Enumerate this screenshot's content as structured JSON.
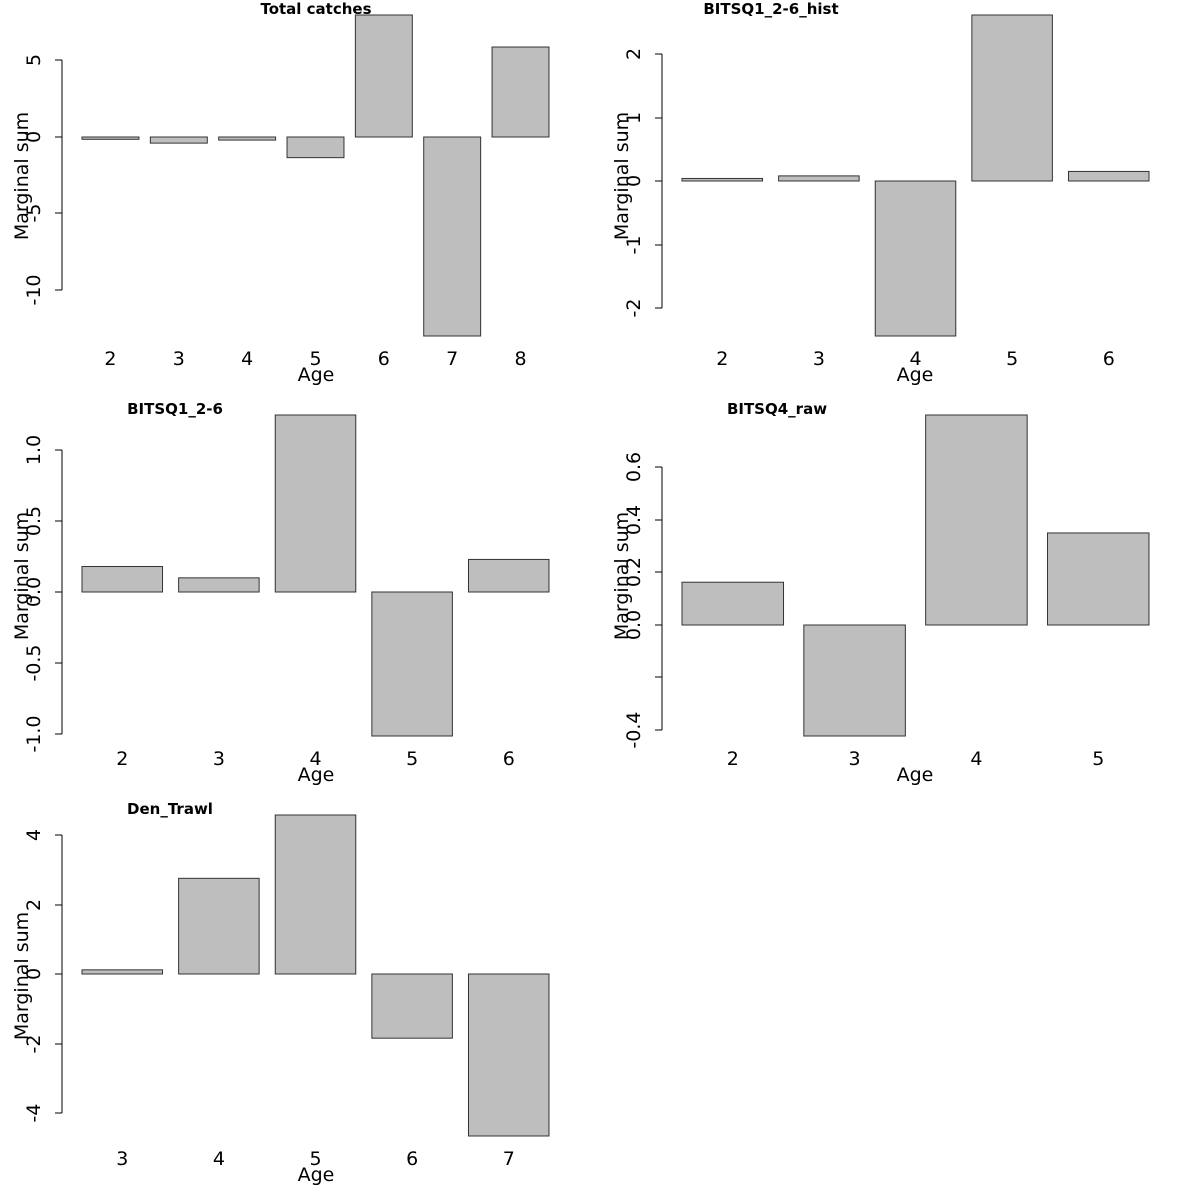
{
  "chart_data": [
    {
      "type": "bar",
      "title": "Total catches",
      "xlabel": "Age",
      "ylabel": "Marginal sum",
      "categories": [
        "2",
        "3",
        "4",
        "5",
        "6",
        "7",
        "8"
      ],
      "values": [
        -0.15,
        -0.4,
        -0.2,
        -1.35,
        8.0,
        -13.0,
        5.9
      ],
      "yticks": [
        "5",
        "0",
        "-5",
        "-10"
      ],
      "ylim": [
        -13.0,
        8.0
      ],
      "grid": false
    },
    {
      "type": "bar",
      "title": "BITSQ1_2-6_hist",
      "xlabel": "Age",
      "ylabel": "Marginal sum",
      "categories": [
        "2",
        "3",
        "4",
        "5",
        "6"
      ],
      "values": [
        0.04,
        0.08,
        -2.43,
        2.6,
        0.15
      ],
      "yticks": [
        "2",
        "1",
        "0",
        "-1",
        "-2"
      ],
      "ylim": [
        -2.43,
        2.6
      ],
      "grid": false
    },
    {
      "type": "bar",
      "title": "BITSQ1_2-6",
      "xlabel": "Age",
      "ylabel": "Marginal sum",
      "categories": [
        "2",
        "3",
        "4",
        "5",
        "6"
      ],
      "values": [
        0.18,
        0.1,
        1.25,
        -1.02,
        0.23
      ],
      "yticks": [
        "1.0",
        "0.5",
        "0.0",
        "-0.5",
        "-1.0"
      ],
      "ylim": [
        -1.02,
        1.25
      ],
      "grid": false
    },
    {
      "type": "bar",
      "title": "BITSQ4_raw",
      "xlabel": "Age",
      "ylabel": "Marginal sum",
      "categories": [
        "2",
        "3",
        "4",
        "5"
      ],
      "values": [
        0.165,
        -0.425,
        0.81,
        0.355
      ],
      "yticks": [
        "0.6",
        "0.4",
        "0.2",
        "0.0",
        "",
        "-0.4"
      ],
      "ylim": [
        -0.425,
        0.81
      ],
      "grid": false
    },
    {
      "type": "bar",
      "title": "Den_Trawl",
      "xlabel": "Age",
      "ylabel": "Marginal sum",
      "categories": [
        "3",
        "4",
        "5",
        "6",
        "7"
      ],
      "values": [
        0.12,
        2.75,
        4.57,
        -1.85,
        -4.67
      ],
      "yticks": [
        "4",
        "2",
        "0",
        "-2",
        "-4"
      ],
      "ylim": [
        -4.67,
        4.57
      ],
      "grid": false
    }
  ]
}
